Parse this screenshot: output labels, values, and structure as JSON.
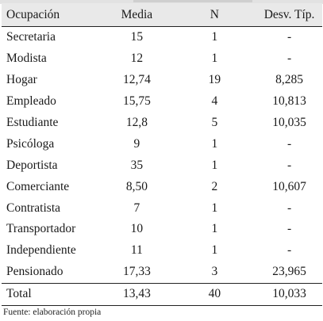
{
  "table": {
    "headers": {
      "occupation": "Ocupación",
      "mean": "Media",
      "n": "N",
      "sd": "Desv. Típ."
    },
    "rows": [
      {
        "occupation": "Secretaria",
        "mean": "15",
        "n": "1",
        "sd": "-"
      },
      {
        "occupation": "Modista",
        "mean": "12",
        "n": "1",
        "sd": "-"
      },
      {
        "occupation": "Hogar",
        "mean": "12,74",
        "n": "19",
        "sd": "8,285"
      },
      {
        "occupation": "Empleado",
        "mean": "15,75",
        "n": "4",
        "sd": "10,813"
      },
      {
        "occupation": "Estudiante",
        "mean": "12,8",
        "n": "5",
        "sd": "10,035"
      },
      {
        "occupation": "Psicóloga",
        "mean": "9",
        "n": "1",
        "sd": "-"
      },
      {
        "occupation": "Deportista",
        "mean": "35",
        "n": "1",
        "sd": "-"
      },
      {
        "occupation": "Comerciante",
        "mean": "8,50",
        "n": "2",
        "sd": "10,607"
      },
      {
        "occupation": "Contratista",
        "mean": "7",
        "n": "1",
        "sd": "-"
      },
      {
        "occupation": "Transportador",
        "mean": "10",
        "n": "1",
        "sd": "-"
      },
      {
        "occupation": "Independiente",
        "mean": "11",
        "n": "1",
        "sd": "-"
      },
      {
        "occupation": "Pensionado",
        "mean": "17,33",
        "n": "3",
        "sd": "23,965"
      }
    ],
    "total": {
      "occupation": "Total",
      "mean": "13,43",
      "n": "40",
      "sd": "10,033"
    }
  },
  "source": "Fuente: elaboración propia",
  "colors": {
    "header_background": "#e9e9e9",
    "rule": "#222222"
  }
}
